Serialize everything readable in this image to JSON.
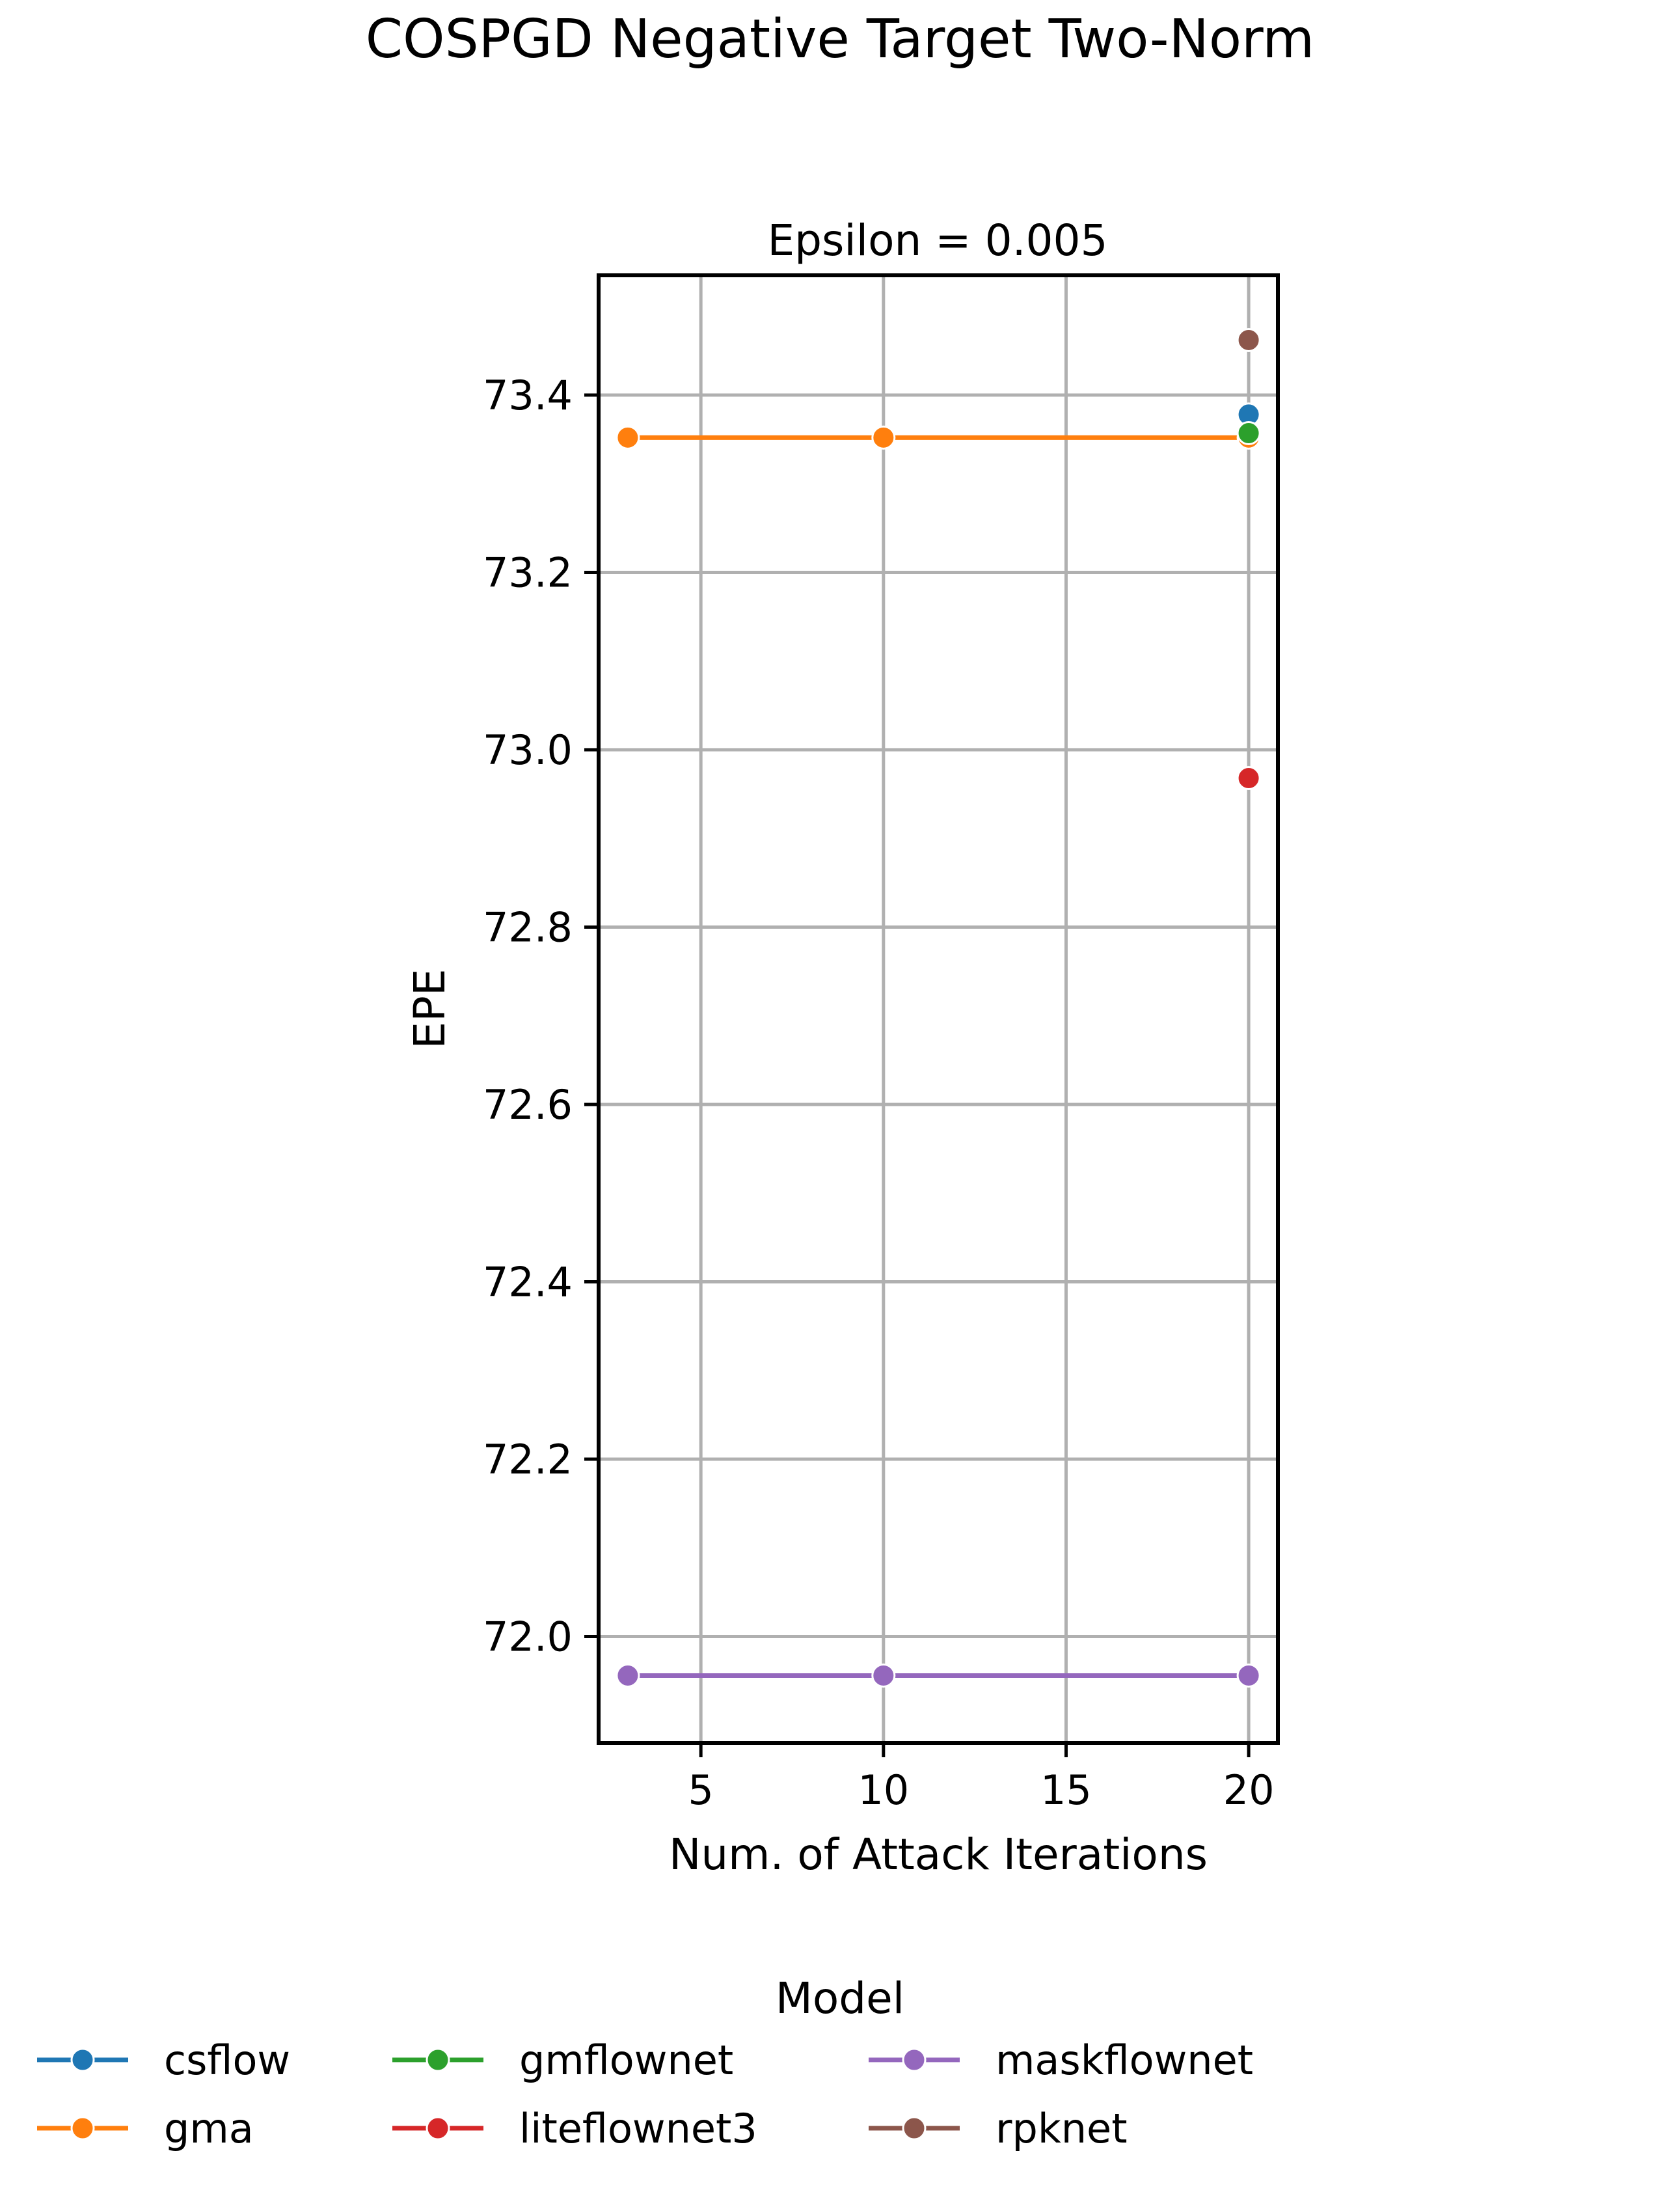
{
  "chart_data": {
    "type": "line",
    "title": "COSPGD Negative Target Two-Norm",
    "subtitle": "Epsilon = 0.005",
    "xlabel": "Num. of Attack Iterations",
    "ylabel": "EPE",
    "xlim": [
      2.2,
      20.8
    ],
    "ylim": [
      71.88,
      73.535
    ],
    "xticks": [
      5,
      10,
      15,
      20
    ],
    "yticks": [
      72.0,
      72.2,
      72.4,
      72.6,
      72.8,
      73.0,
      73.2,
      73.4
    ],
    "xtick_labels": [
      "5",
      "10",
      "15",
      "20"
    ],
    "ytick_labels": [
      "72.0",
      "72.2",
      "72.4",
      "72.6",
      "72.8",
      "73.0",
      "73.2",
      "73.4"
    ],
    "grid": true,
    "legend": {
      "title": "Model",
      "placement": "bottom-center",
      "columns": 4
    },
    "series": [
      {
        "name": "csflow",
        "color": "#1f77b4",
        "x": [
          20
        ],
        "y": [
          73.378
        ]
      },
      {
        "name": "gma",
        "color": "#ff7f0e",
        "x": [
          3,
          10,
          20
        ],
        "y": [
          73.352,
          73.352,
          73.352
        ]
      },
      {
        "name": "gmflownet",
        "color": "#2ca02c",
        "x": [
          20
        ],
        "y": [
          73.357
        ]
      },
      {
        "name": "liteflownet3",
        "color": "#d62728",
        "x": [
          20
        ],
        "y": [
          72.968
        ]
      },
      {
        "name": "maskflownet",
        "color": "#9467bd",
        "x": [
          3,
          10,
          20
        ],
        "y": [
          71.956,
          71.956,
          71.956
        ]
      },
      {
        "name": "rpknet",
        "color": "#8c564b",
        "x": [
          20
        ],
        "y": [
          73.462
        ]
      }
    ]
  }
}
